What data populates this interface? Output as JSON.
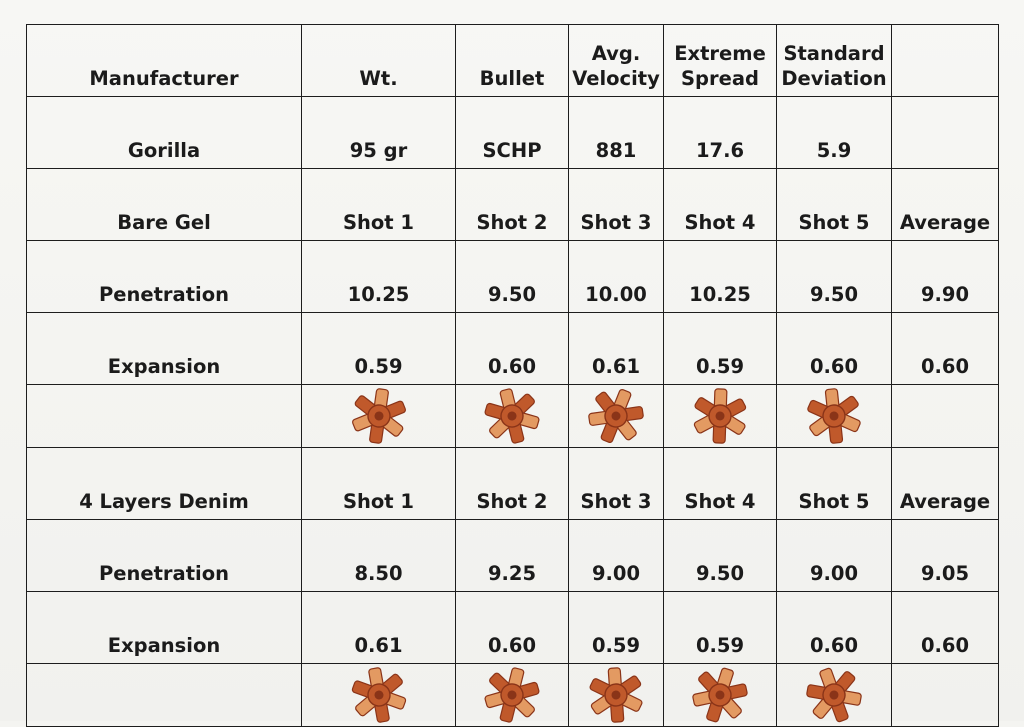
{
  "colors": {
    "grid_line": "#1d1d1d",
    "text": "#1b1b1b",
    "paper": "#f4f4f1",
    "copper_dark": "#8a3418",
    "copper_mid": "#c0592b",
    "copper_light": "#e39a62"
  },
  "header": {
    "manufacturer": "Manufacturer",
    "weight": "Wt.",
    "bullet": "Bullet",
    "avg_velocity_1": "Avg.",
    "avg_velocity_2": "Velocity",
    "extreme_spread_1": "Extreme",
    "extreme_spread_2": "Spread",
    "std_dev_1": "Standard",
    "std_dev_2": "Deviation",
    "blank": ""
  },
  "load": {
    "manufacturer": "Gorilla",
    "weight": "95 gr",
    "bullet": "SCHP",
    "avg_velocity": "881",
    "extreme_spread": "17.6",
    "std_dev": "5.9"
  },
  "bare_gel": {
    "label": "Bare Gel",
    "shots": [
      "Shot 1",
      "Shot 2",
      "Shot 3",
      "Shot 4",
      "Shot 5"
    ],
    "average_label": "Average",
    "penetration_label": "Penetration",
    "penetration": [
      "10.25",
      "9.50",
      "10.00",
      "10.25",
      "9.50"
    ],
    "penetration_avg": "9.90",
    "expansion_label": "Expansion",
    "expansion": [
      "0.59",
      "0.60",
      "0.61",
      "0.59",
      "0.60"
    ],
    "expansion_avg": "0.60",
    "photo_icons": [
      "expanded-bullet-icon",
      "expanded-bullet-icon",
      "expanded-bullet-icon",
      "expanded-bullet-icon",
      "expanded-bullet-icon"
    ]
  },
  "denim": {
    "label": "4 Layers Denim",
    "shots": [
      "Shot 1",
      "Shot 2",
      "Shot 3",
      "Shot 4",
      "Shot 5"
    ],
    "average_label": "Average",
    "penetration_label": "Penetration",
    "penetration": [
      "8.50",
      "9.25",
      "9.00",
      "9.50",
      "9.00"
    ],
    "penetration_avg": "9.05",
    "expansion_label": "Expansion",
    "expansion": [
      "0.61",
      "0.60",
      "0.59",
      "0.59",
      "0.60"
    ],
    "expansion_avg": "0.60",
    "photo_icons": [
      "expanded-bullet-icon",
      "expanded-bullet-icon",
      "expanded-bullet-icon",
      "expanded-bullet-icon",
      "expanded-bullet-icon"
    ]
  }
}
